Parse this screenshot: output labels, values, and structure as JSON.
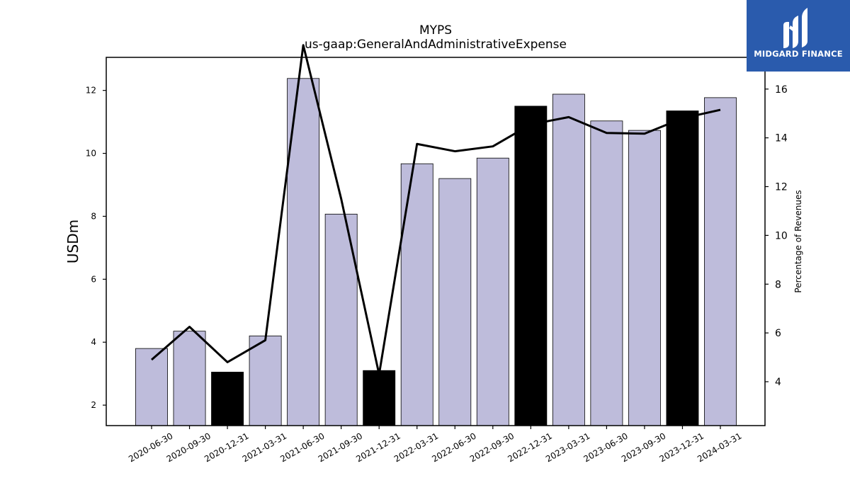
{
  "logo": {
    "text": "MIDGARD FINANCE",
    "icon": "midgard-m-icon",
    "color": "#2a5bad"
  },
  "chart_data": {
    "type": "bar",
    "title": "MYPS",
    "subtitle": "us-gaap:GeneralAndAdministrativeExpense",
    "ylabel": "USDm",
    "y2label": "Percentage of Revenues",
    "categories": [
      "2020-06-30",
      "2020-09-30",
      "2020-12-31",
      "2021-03-31",
      "2021-06-30",
      "2021-09-30",
      "2021-12-31",
      "2022-03-31",
      "2022-06-30",
      "2022-09-30",
      "2022-12-31",
      "2023-03-31",
      "2023-06-30",
      "2023-09-30",
      "2023-12-31",
      "2024-03-31"
    ],
    "series": [
      {
        "type": "bar",
        "values": [
          3.8,
          4.35,
          3.05,
          4.2,
          12.38,
          8.07,
          3.1,
          9.67,
          9.2,
          9.85,
          11.5,
          11.88,
          11.03,
          10.73,
          11.35,
          11.77
        ],
        "highlight": [
          false,
          false,
          true,
          false,
          false,
          false,
          true,
          false,
          false,
          false,
          true,
          false,
          false,
          false,
          true,
          false
        ]
      },
      {
        "type": "line",
        "axis": "right",
        "values": [
          4.9,
          6.25,
          4.8,
          5.7,
          17.8,
          11.5,
          4.3,
          13.75,
          13.45,
          13.65,
          14.55,
          14.85,
          14.2,
          14.17,
          14.8,
          15.15
        ]
      }
    ],
    "ylim": [
      1.35,
      13.05
    ],
    "y2lim": [
      2.2,
      17.3
    ],
    "yticks": [
      2,
      4,
      6,
      8,
      10,
      12
    ],
    "y2ticks": [
      4,
      6,
      8,
      10,
      12,
      14,
      16
    ],
    "colors": {
      "bar": "#bebcdb",
      "highlight_bar": "#000000",
      "line": "#000000"
    },
    "grid": false
  }
}
